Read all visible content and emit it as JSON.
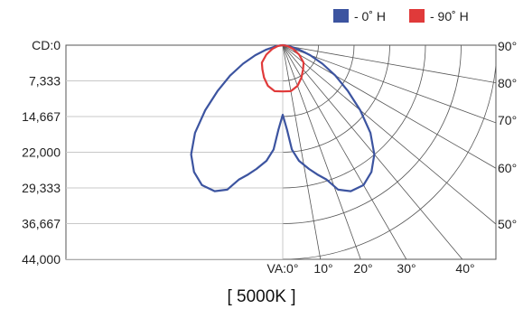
{
  "chart_data": {
    "type": "polar-line",
    "title": "",
    "caption": "[ 5000K ]",
    "radial_axis": {
      "labels": [
        "CD:0",
        "7,333",
        "14,667",
        "22,000",
        "29,333",
        "36,667",
        "44,000"
      ],
      "values": [
        0,
        7333,
        14667,
        22000,
        29333,
        36667,
        44000
      ],
      "range": [
        0,
        44000
      ]
    },
    "angle_axis": {
      "bottom_labels": [
        "VA:0°",
        "10°",
        "20°",
        "30°",
        "40°"
      ],
      "side_labels": [
        "90°",
        "80°",
        "70°",
        "60°",
        "50°"
      ],
      "angles_deg": [
        0,
        10,
        20,
        30,
        40,
        50,
        60,
        70,
        80,
        90
      ],
      "rings_cd": [
        7333,
        14667,
        22000,
        29333,
        36667,
        44000
      ]
    },
    "grid": true,
    "legend": {
      "position": "top-right"
    },
    "series": [
      {
        "name": "- 0˚ H",
        "color": "#3c54a0",
        "points": [
          {
            "angle": 0,
            "cd": 14300
          },
          {
            "angle": 3,
            "cd": 17500
          },
          {
            "angle": 5,
            "cd": 21500
          },
          {
            "angle": 8,
            "cd": 24000
          },
          {
            "angle": 12,
            "cd": 26000
          },
          {
            "angle": 15,
            "cd": 27500
          },
          {
            "angle": 18,
            "cd": 29000
          },
          {
            "angle": 21,
            "cd": 31800
          },
          {
            "angle": 25,
            "cd": 33100
          },
          {
            "angle": 30,
            "cd": 33200
          },
          {
            "angle": 35,
            "cd": 31800
          },
          {
            "angle": 40,
            "cd": 29300
          },
          {
            "angle": 45,
            "cd": 25500
          },
          {
            "angle": 50,
            "cd": 20800
          },
          {
            "angle": 55,
            "cd": 16300
          },
          {
            "angle": 60,
            "cd": 12500
          },
          {
            "angle": 65,
            "cd": 9000
          },
          {
            "angle": 70,
            "cd": 6000
          },
          {
            "angle": 75,
            "cd": 3500
          },
          {
            "angle": 80,
            "cd": 1600
          },
          {
            "angle": 85,
            "cd": 500
          },
          {
            "angle": 90,
            "cd": 0
          }
        ]
      },
      {
        "name": "- 90˚ H",
        "color": "#e03a3a",
        "points": [
          {
            "angle": 0,
            "cd": 9500
          },
          {
            "angle": 10,
            "cd": 9600
          },
          {
            "angle": 20,
            "cd": 8900
          },
          {
            "angle": 30,
            "cd": 7700
          },
          {
            "angle": 40,
            "cd": 6500
          },
          {
            "angle": 50,
            "cd": 5600
          },
          {
            "angle": 60,
            "cd": 3900
          },
          {
            "angle": 70,
            "cd": 2300
          },
          {
            "angle": 80,
            "cd": 1000
          },
          {
            "angle": 90,
            "cd": 0
          }
        ]
      }
    ]
  }
}
